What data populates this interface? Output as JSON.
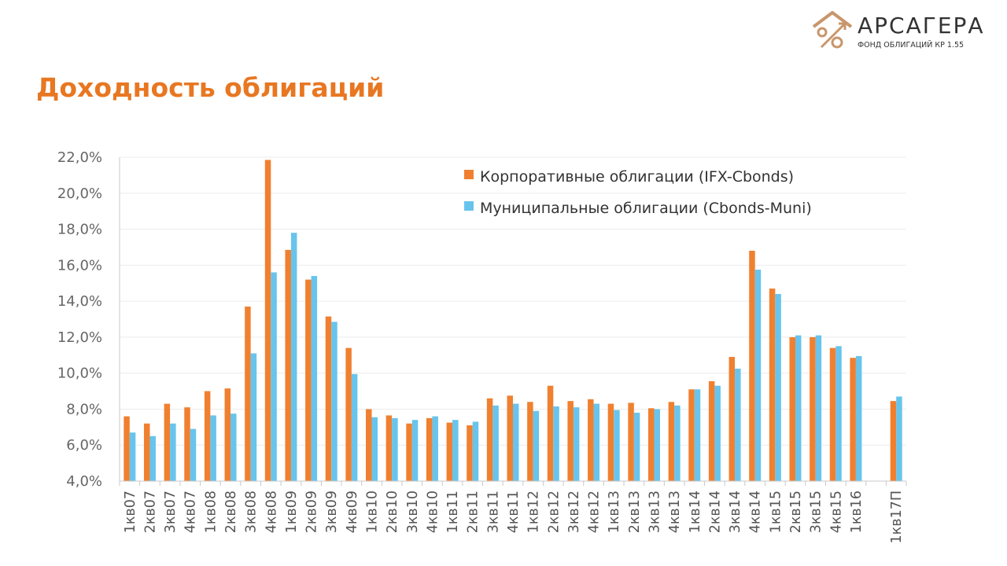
{
  "header": {
    "title": "Доходность облигаций",
    "logo_name": "АРСАГЕРА",
    "logo_subtitle": "ФОНД ОБЛИГАЦИЙ КР 1.55"
  },
  "colors": {
    "accent": "#e87722",
    "series_corporate": "#f08030",
    "series_municipal": "#68c4ec",
    "logo_icon": "#c8966b"
  },
  "chart_data": {
    "type": "bar",
    "title": "",
    "xlabel": "",
    "ylabel": "",
    "ylim": [
      4,
      22
    ],
    "yticks": [
      "4,0%",
      "6,0%",
      "8,0%",
      "10,0%",
      "12,0%",
      "14,0%",
      "16,0%",
      "18,0%",
      "20,0%",
      "22,0%"
    ],
    "grid": true,
    "legend_position": "top-right",
    "categories": [
      "1кв07",
      "2кв07",
      "3кв07",
      "4кв07",
      "1кв08",
      "2кв08",
      "3кв08",
      "4кв08",
      "1кв09",
      "2кв09",
      "3кв09",
      "4кв09",
      "1кв10",
      "2кв10",
      "3кв10",
      "4кв10",
      "1кв11",
      "2кв11",
      "3кв11",
      "4кв11",
      "1кв12",
      "2кв12",
      "3кв12",
      "4кв12",
      "1кв13",
      "2кв13",
      "3кв13",
      "4кв13",
      "1кв14",
      "2кв14",
      "3кв14",
      "4кв14",
      "1кв15",
      "2кв15",
      "3кв15",
      "4кв15",
      "1кв16",
      "",
      "1кв17П"
    ],
    "series": [
      {
        "name": "Корпоративные облигации (IFX-Cbonds)",
        "values": [
          7.6,
          7.2,
          8.3,
          8.1,
          9.0,
          9.15,
          13.7,
          21.85,
          16.85,
          15.2,
          13.15,
          11.4,
          8.0,
          7.65,
          7.2,
          7.5,
          7.25,
          7.1,
          8.6,
          8.75,
          8.4,
          9.3,
          8.45,
          8.55,
          8.3,
          8.35,
          8.05,
          8.4,
          9.1,
          9.55,
          10.9,
          16.8,
          14.7,
          12.0,
          12.0,
          11.4,
          10.85,
          null,
          8.45
        ]
      },
      {
        "name": "Муниципальные облигации (Cbonds-Muni)",
        "values": [
          6.7,
          6.5,
          7.2,
          6.9,
          7.65,
          7.75,
          11.1,
          15.6,
          17.8,
          15.4,
          12.85,
          9.95,
          7.55,
          7.5,
          7.4,
          7.6,
          7.4,
          7.3,
          8.2,
          8.3,
          7.9,
          8.15,
          8.1,
          8.3,
          7.95,
          7.8,
          8.0,
          8.2,
          9.1,
          9.3,
          10.25,
          15.75,
          14.4,
          12.1,
          12.1,
          11.5,
          10.95,
          null,
          8.7
        ]
      }
    ]
  }
}
